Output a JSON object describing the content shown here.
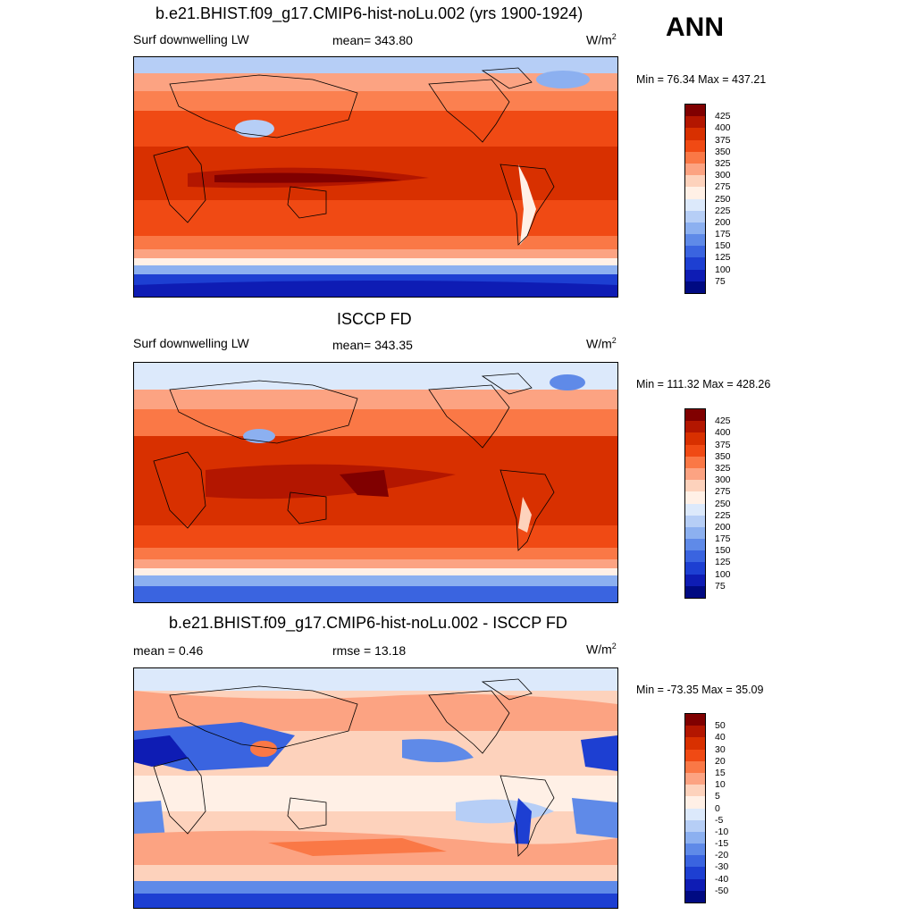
{
  "season": "ANN",
  "panels": [
    {
      "title": "b.e21.BHIST.f09_g17.CMIP6-hist-noLu.002 (yrs 1900-1924)",
      "left_label": "Surf downwelling LW",
      "center_label": "mean= 343.80",
      "unit": "W/m",
      "unit_sup": "2",
      "minmax": "Min =  76.34 Max = 437.21",
      "colorbar_labels": [
        "425",
        "400",
        "375",
        "350",
        "325",
        "300",
        "275",
        "250",
        "225",
        "200",
        "175",
        "150",
        "125",
        "100",
        "75"
      ],
      "colorbar_colors": [
        "#800000",
        "#b31600",
        "#d83000",
        "#f04a14",
        "#fa7846",
        "#fca382",
        "#fdd2bc",
        "#fff0e6",
        "#dce9fb",
        "#b6cef6",
        "#8cb0f0",
        "#5f8ae8",
        "#3a64e0",
        "#1d3fd2",
        "#0e1cb4",
        "#000a82"
      ]
    },
    {
      "title": "ISCCP FD",
      "left_label": "Surf downwelling LW",
      "center_label": "mean= 343.35",
      "unit": "W/m",
      "unit_sup": "2",
      "minmax": "Min = 111.32 Max = 428.26",
      "colorbar_labels": [
        "425",
        "400",
        "375",
        "350",
        "325",
        "300",
        "275",
        "250",
        "225",
        "200",
        "175",
        "150",
        "125",
        "100",
        "75"
      ],
      "colorbar_colors": [
        "#800000",
        "#b31600",
        "#d83000",
        "#f04a14",
        "#fa7846",
        "#fca382",
        "#fdd2bc",
        "#fff0e6",
        "#dce9fb",
        "#b6cef6",
        "#8cb0f0",
        "#5f8ae8",
        "#3a64e0",
        "#1d3fd2",
        "#0e1cb4",
        "#000a82"
      ]
    },
    {
      "title": "b.e21.BHIST.f09_g17.CMIP6-hist-noLu.002 - ISCCP FD",
      "left_label": "mean =   0.46",
      "center_label": "rmse =  13.18",
      "unit": "W/m",
      "unit_sup": "2",
      "minmax": "Min = -73.35 Max =  35.09",
      "colorbar_labels": [
        "50",
        "40",
        "30",
        "20",
        "15",
        "10",
        "5",
        "0",
        "-5",
        "-10",
        "-15",
        "-20",
        "-30",
        "-40",
        "-50"
      ],
      "colorbar_colors": [
        "#800000",
        "#b31600",
        "#d83000",
        "#f04a14",
        "#fa7846",
        "#fca382",
        "#fdd2bc",
        "#fff0e6",
        "#dce9fb",
        "#b6cef6",
        "#8cb0f0",
        "#5f8ae8",
        "#3a64e0",
        "#1d3fd2",
        "#0e1cb4",
        "#000a82"
      ]
    }
  ]
}
